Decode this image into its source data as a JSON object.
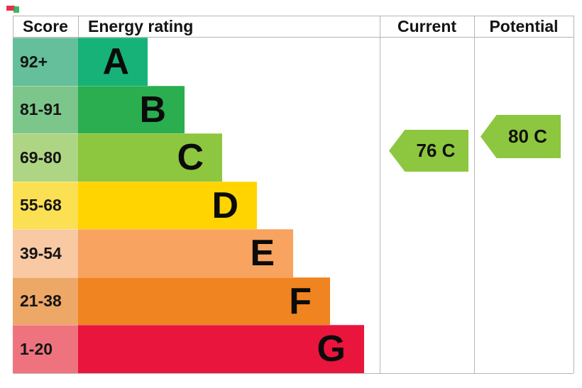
{
  "header": {
    "score": "Score",
    "energy_rating": "Energy rating",
    "current": "Current",
    "potential": "Potential"
  },
  "bands": [
    {
      "letter": "A",
      "score_range": "92+",
      "bar_color": "#17b278",
      "score_cell_color": "#64bf9a"
    },
    {
      "letter": "B",
      "score_range": "81-91",
      "bar_color": "#2aae4f",
      "score_cell_color": "#7cc68b"
    },
    {
      "letter": "C",
      "score_range": "69-80",
      "bar_color": "#8dc63f",
      "score_cell_color": "#aed584"
    },
    {
      "letter": "D",
      "score_range": "55-68",
      "bar_color": "#ffd400",
      "score_cell_color": "#fbe054"
    },
    {
      "letter": "E",
      "score_range": "39-54",
      "bar_color": "#f8a35f",
      "score_cell_color": "#f8c9a2"
    },
    {
      "letter": "F",
      "score_range": "21-38",
      "bar_color": "#ef8421",
      "score_cell_color": "#eda766"
    },
    {
      "letter": "G",
      "score_range": "1-20",
      "bar_color": "#e9153d",
      "score_cell_color": "#ef737f"
    }
  ],
  "current_arrow": {
    "label": "76 C",
    "value": 76,
    "rating": "C",
    "color": "#8dc63f"
  },
  "potential_arrow": {
    "label": "80 C",
    "value": 80,
    "rating": "C",
    "color": "#8dc63f"
  },
  "grid_color": "#b5b5b5",
  "chart_data": {
    "type": "bar",
    "title": "Energy rating",
    "categories": [
      "A",
      "B",
      "C",
      "D",
      "E",
      "F",
      "G"
    ],
    "band_score_ranges": [
      "92+",
      "81-91",
      "69-80",
      "55-68",
      "39-54",
      "21-38",
      "1-20"
    ],
    "bar_widths_relative": [
      0.23,
      0.35,
      0.48,
      0.59,
      0.71,
      0.84,
      0.95
    ],
    "bar_colors": [
      "#17b278",
      "#2aae4f",
      "#8dc63f",
      "#ffd400",
      "#f8a35f",
      "#ef8421",
      "#e9153d"
    ],
    "legend_position": "none",
    "grid": false,
    "markers": [
      {
        "name": "Current",
        "value": 76,
        "rating": "C",
        "label": "76 C"
      },
      {
        "name": "Potential",
        "value": 80,
        "rating": "C",
        "label": "80 C"
      }
    ]
  }
}
